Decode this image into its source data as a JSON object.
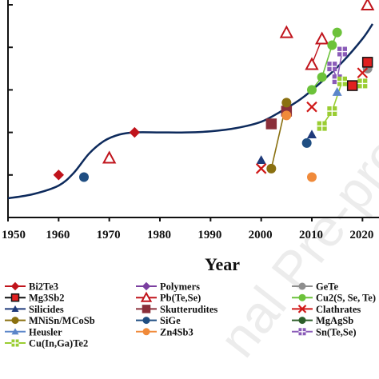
{
  "chart_data": {
    "type": "scatter",
    "xlabel": "Year",
    "ylabel": "",
    "xlim": [
      1950,
      2022
    ],
    "ylim": [
      0,
      10
    ],
    "x_ticks": [
      "1950",
      "1960",
      "1970",
      "1980",
      "1990",
      "2000",
      "2010",
      "2020"
    ],
    "trend_curve": {
      "color": "#0d2a5c",
      "x": [
        1950,
        1955,
        1960,
        1963,
        1966,
        1969,
        1972,
        1975,
        1980,
        1985,
        1990,
        1995,
        2000,
        2004,
        2008,
        2012,
        2016,
        2020,
        2022
      ],
      "y": [
        0.9,
        1.1,
        1.5,
        2.1,
        3.0,
        3.6,
        3.9,
        4.0,
        4.0,
        4.0,
        4.05,
        4.2,
        4.5,
        5.0,
        5.6,
        6.4,
        7.3,
        8.4,
        9.1
      ]
    },
    "series": [
      {
        "name": "Bi2Te3",
        "color": "#c0141c",
        "marker": "diamond",
        "points": [
          [
            1960,
            2.0
          ],
          [
            1975,
            4.0
          ]
        ]
      },
      {
        "name": "Polymers",
        "color": "#7b3fa0",
        "marker": "diamond",
        "points": []
      },
      {
        "name": "GeTe",
        "color": "#8e8e8e",
        "marker": "circle",
        "points": [
          [
            2021,
            7.0
          ]
        ]
      },
      {
        "name": "Mg3Sb2",
        "color": "#111111",
        "marker": "square",
        "fill": "#e02020",
        "points": [
          [
            2018,
            6.2
          ],
          [
            2021,
            7.3
          ]
        ]
      },
      {
        "name": "Pb(Te,Se)",
        "color": "#c0141c",
        "marker": "triangle-open",
        "points": [
          [
            1970,
            2.8
          ],
          [
            2005,
            8.7
          ],
          [
            2010,
            7.2
          ],
          [
            2012,
            8.4
          ],
          [
            2021,
            10.0
          ]
        ]
      },
      {
        "name": "Cu2(S, Se, Te)",
        "color": "#6cc23a",
        "marker": "circle",
        "points": [
          [
            2010,
            6.0
          ],
          [
            2012,
            6.6
          ],
          [
            2014,
            8.1
          ],
          [
            2015,
            8.7
          ]
        ]
      },
      {
        "name": "Silicides",
        "color": "#1f3a7a",
        "marker": "triangle",
        "points": [
          [
            2000,
            2.7
          ],
          [
            2010,
            3.9
          ]
        ]
      },
      {
        "name": "Skutterudites",
        "color": "#8a2f3a",
        "marker": "square",
        "points": [
          [
            2002,
            4.4
          ],
          [
            2005,
            5.0
          ]
        ]
      },
      {
        "name": "Clathrates",
        "color": "#d01818",
        "marker": "x",
        "points": [
          [
            2000,
            2.3
          ],
          [
            2010,
            5.2
          ],
          [
            2020,
            6.8
          ]
        ]
      },
      {
        "name": "MNiSn/MCoSb",
        "color": "#8a7010",
        "marker": "circle",
        "points": [
          [
            2002,
            2.3
          ],
          [
            2005,
            5.4
          ]
        ]
      },
      {
        "name": "SiGe",
        "color": "#1f4e82",
        "marker": "circle",
        "points": [
          [
            1965,
            1.9
          ],
          [
            2009,
            3.5
          ]
        ]
      },
      {
        "name": "MgAgSb",
        "color": "#2d5f2a",
        "marker": "circle",
        "points": []
      },
      {
        "name": "Heusler",
        "color": "#5b86c9",
        "marker": "triangle",
        "points": [
          [
            2015,
            5.9
          ]
        ]
      },
      {
        "name": "Zn4Sb3",
        "color": "#f08a3a",
        "marker": "circle",
        "points": [
          [
            2005,
            4.8
          ],
          [
            2010,
            1.9
          ]
        ]
      },
      {
        "name": "Sn(Te,Se)",
        "color": "#8a5bb8",
        "marker": "square-cross",
        "points": [
          [
            2014,
            7.1
          ],
          [
            2015,
            6.5
          ],
          [
            2016,
            7.8
          ]
        ]
      },
      {
        "name": "Cu(In,Ga)Te2",
        "color": "#9acd32",
        "marker": "square-cross",
        "points": [
          [
            2012,
            4.3
          ],
          [
            2014,
            5.0
          ],
          [
            2016,
            6.4
          ],
          [
            2020,
            6.3
          ]
        ]
      }
    ],
    "legend_position": "bottom",
    "grid": false
  }
}
